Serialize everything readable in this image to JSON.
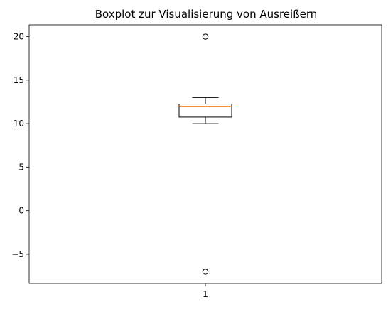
{
  "chart_data": {
    "type": "box",
    "title": "Boxplot zur Visualisierung von Ausreißern",
    "xlabel": "",
    "ylabel": "",
    "categories": [
      "1"
    ],
    "ylim": [
      -8.35,
      21.35
    ],
    "yticks": [
      -5,
      0,
      5,
      10,
      15,
      20
    ],
    "ytick_labels": [
      "−5",
      "0",
      "5",
      "10",
      "15",
      "20"
    ],
    "box": {
      "whisker_low": 10,
      "q1": 10.75,
      "median": 12,
      "q3": 12.25,
      "whisker_high": 13
    },
    "outliers": [
      20,
      -7
    ],
    "grid": false,
    "colors": {
      "box": "#000000",
      "median": "#ff7f0e",
      "axes": "#000000",
      "background": "#ffffff"
    }
  }
}
